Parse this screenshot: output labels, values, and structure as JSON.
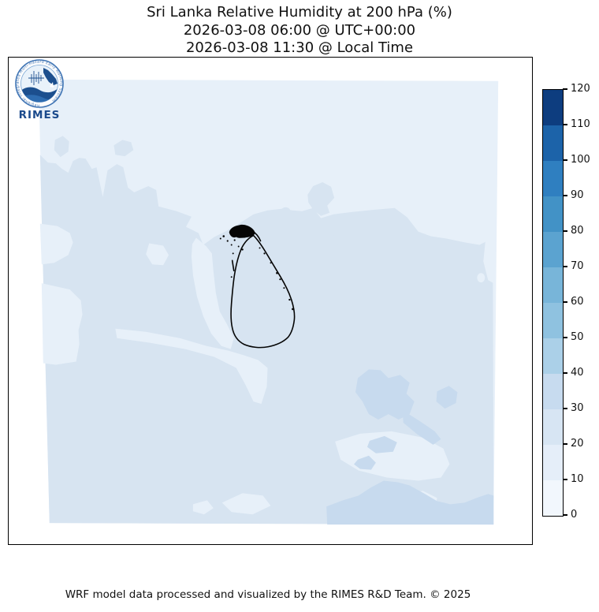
{
  "title": {
    "line1": "Sri Lanka Relative Humidity at 200 hPa (%)",
    "line2": "2026-03-08 06:00 @ UTC+00:00",
    "line3": "2026-03-08 11:30 @ Local Time"
  },
  "footer": {
    "credit": "WRF model data processed and visualized by the RIMES R&D Team. © 2025"
  },
  "map": {
    "region": "Sri Lanka",
    "frame_color": "#000000",
    "coastline_color": "#050505",
    "shades": {
      "band_0_10": "#f2f7fd",
      "band_10_20": "#e7f0f9",
      "band_20_30": "#d7e4f1",
      "band_30_40": "#c7daee"
    }
  },
  "colorbar": {
    "unit": "%",
    "min": 0,
    "max": 120,
    "step": 10,
    "tick_values_top_to_bottom": [
      120,
      110,
      100,
      90,
      80,
      70,
      60,
      50,
      40,
      30,
      20,
      10,
      0
    ],
    "colors_top_to_bottom": [
      "#0d3d7f",
      "#1c63a9",
      "#2f7fc0",
      "#4292c6",
      "#5ba3d0",
      "#78b5d9",
      "#8fc2e0",
      "#abd0e8",
      "#c7dbef",
      "#d7e5f3",
      "#e5eef9",
      "#f2f7fd"
    ]
  },
  "logo": {
    "label": "RIMES",
    "ring_text": "Regional Integrated Multi-Hazard Early Warning System",
    "ring_color": "#3f74b4",
    "dark_blue": "#1c4f8e",
    "mid_blue": "#2e6cb0",
    "text_color": "#1b4a8c",
    "inner_bg": "#e9f2fa"
  },
  "chart_data": {
    "type": "heatmap",
    "title": "Sri Lanka Relative Humidity at 200 hPa (%)",
    "subtitle_utc": "2026-03-08 06:00 @ UTC+00:00",
    "subtitle_local": "2026-03-08 11:30 @ Local Time",
    "variable": "Relative Humidity",
    "pressure_level_hPa": 200,
    "unit": "%",
    "colorbar_levels": [
      0,
      10,
      20,
      30,
      40,
      50,
      60,
      70,
      80,
      90,
      100,
      110,
      120
    ],
    "colorbar_colors_low_to_high": [
      "#f2f7fd",
      "#e5eef9",
      "#d7e5f3",
      "#c7dbef",
      "#abd0e8",
      "#8fc2e0",
      "#78b5d9",
      "#5ba3d0",
      "#4292c6",
      "#2f7fc0",
      "#1c63a9",
      "#0d3d7f"
    ],
    "legend_position": "right",
    "observed_field_band_range": [
      10,
      40
    ],
    "notes": "Filled-contour humidity field over a square model domain around Sri Lanka; most of the domain lies in the 10-30% bands with small 30-40% patches in the south-east and the lightest 10-20% band in the north"
  }
}
